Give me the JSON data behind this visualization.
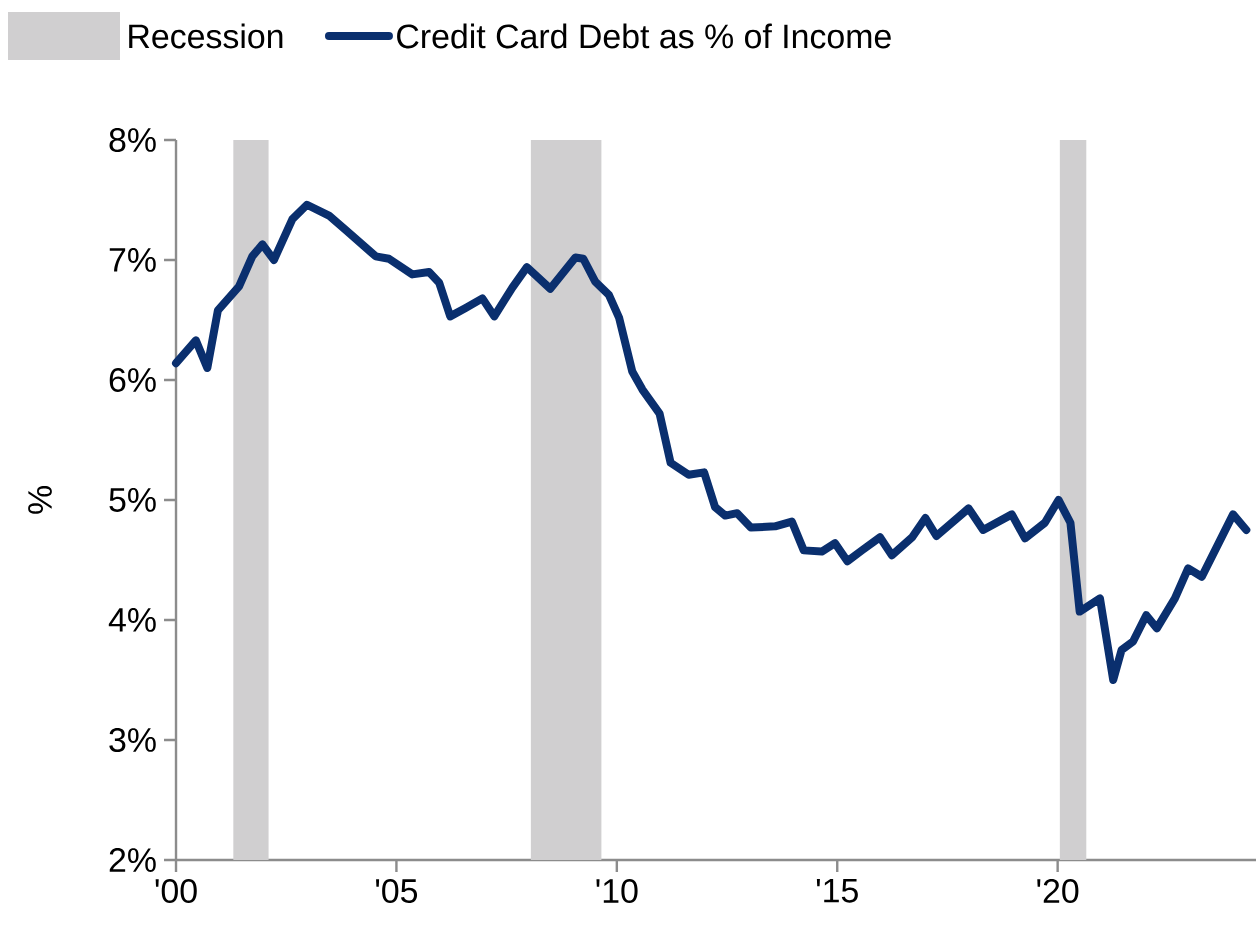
{
  "chart_data": {
    "type": "line",
    "ylabel": "%",
    "legend": "top",
    "xlim": [
      2000,
      2024.5
    ],
    "xticks": [
      {
        "value": 2000,
        "label": "'00"
      },
      {
        "value": 2005,
        "label": "'05"
      },
      {
        "value": 2010,
        "label": "'10"
      },
      {
        "value": 2015,
        "label": "'15"
      },
      {
        "value": 2020,
        "label": "'20"
      }
    ],
    "ylim": [
      2,
      8
    ],
    "yticks": [
      {
        "value": 2,
        "label": "2%"
      },
      {
        "value": 3,
        "label": "3%"
      },
      {
        "value": 4,
        "label": "4%"
      },
      {
        "value": 5,
        "label": "5%"
      },
      {
        "value": 6,
        "label": "6%"
      },
      {
        "value": 7,
        "label": "7%"
      },
      {
        "value": 8,
        "label": "8%"
      }
    ],
    "bands": [
      {
        "axis": "x",
        "from": 2001.3,
        "to": 2002.1,
        "label": "Recession",
        "color": "#d0cfd0"
      },
      {
        "axis": "x",
        "from": 2008.05,
        "to": 2009.65,
        "color": "#d0cfd0"
      },
      {
        "axis": "x",
        "from": 2020.05,
        "to": 2020.65,
        "color": "#d0cfd0"
      }
    ],
    "series": [
      {
        "name": "Credit Card Debt as % of Income",
        "color": "#0a2f6e",
        "x": [
          2000.0,
          2000.45,
          2000.71,
          2000.95,
          2001.43,
          2001.73,
          2001.96,
          2002.22,
          2002.64,
          2002.97,
          2003.47,
          2003.85,
          2004.53,
          2004.83,
          2005.36,
          2005.74,
          2005.97,
          2006.22,
          2006.57,
          2006.95,
          2007.22,
          2007.63,
          2007.96,
          2008.49,
          2009.06,
          2009.24,
          2009.51,
          2009.82,
          2010.05,
          2010.35,
          2010.58,
          2010.97,
          2011.22,
          2011.63,
          2011.98,
          2012.23,
          2012.46,
          2012.73,
          2013.04,
          2013.59,
          2013.97,
          2014.24,
          2014.65,
          2014.95,
          2015.23,
          2015.56,
          2015.97,
          2016.24,
          2016.7,
          2017.0,
          2017.25,
          2017.98,
          2018.31,
          2018.96,
          2019.26,
          2019.71,
          2020.02,
          2020.29,
          2020.5,
          2020.96,
          2021.26,
          2021.45,
          2021.71,
          2022.01,
          2022.25,
          2022.66,
          2022.96,
          2023.27,
          2023.98,
          2024.28
        ],
        "values": [
          6.14,
          6.33,
          6.1,
          6.58,
          6.78,
          7.03,
          7.13,
          7.0,
          7.34,
          7.46,
          7.37,
          7.25,
          7.03,
          7.01,
          6.88,
          6.9,
          6.81,
          6.53,
          6.6,
          6.68,
          6.53,
          6.77,
          6.94,
          6.76,
          7.02,
          7.01,
          6.82,
          6.71,
          6.52,
          6.07,
          5.92,
          5.72,
          5.31,
          5.21,
          5.23,
          4.94,
          4.87,
          4.89,
          4.77,
          4.78,
          4.82,
          4.58,
          4.57,
          4.64,
          4.49,
          4.58,
          4.69,
          4.54,
          4.69,
          4.85,
          4.7,
          4.93,
          4.75,
          4.88,
          4.68,
          4.81,
          5.0,
          4.81,
          4.07,
          4.18,
          3.5,
          3.75,
          3.82,
          4.04,
          3.93,
          4.18,
          4.43,
          4.36,
          4.88,
          4.75
        ]
      }
    ]
  }
}
